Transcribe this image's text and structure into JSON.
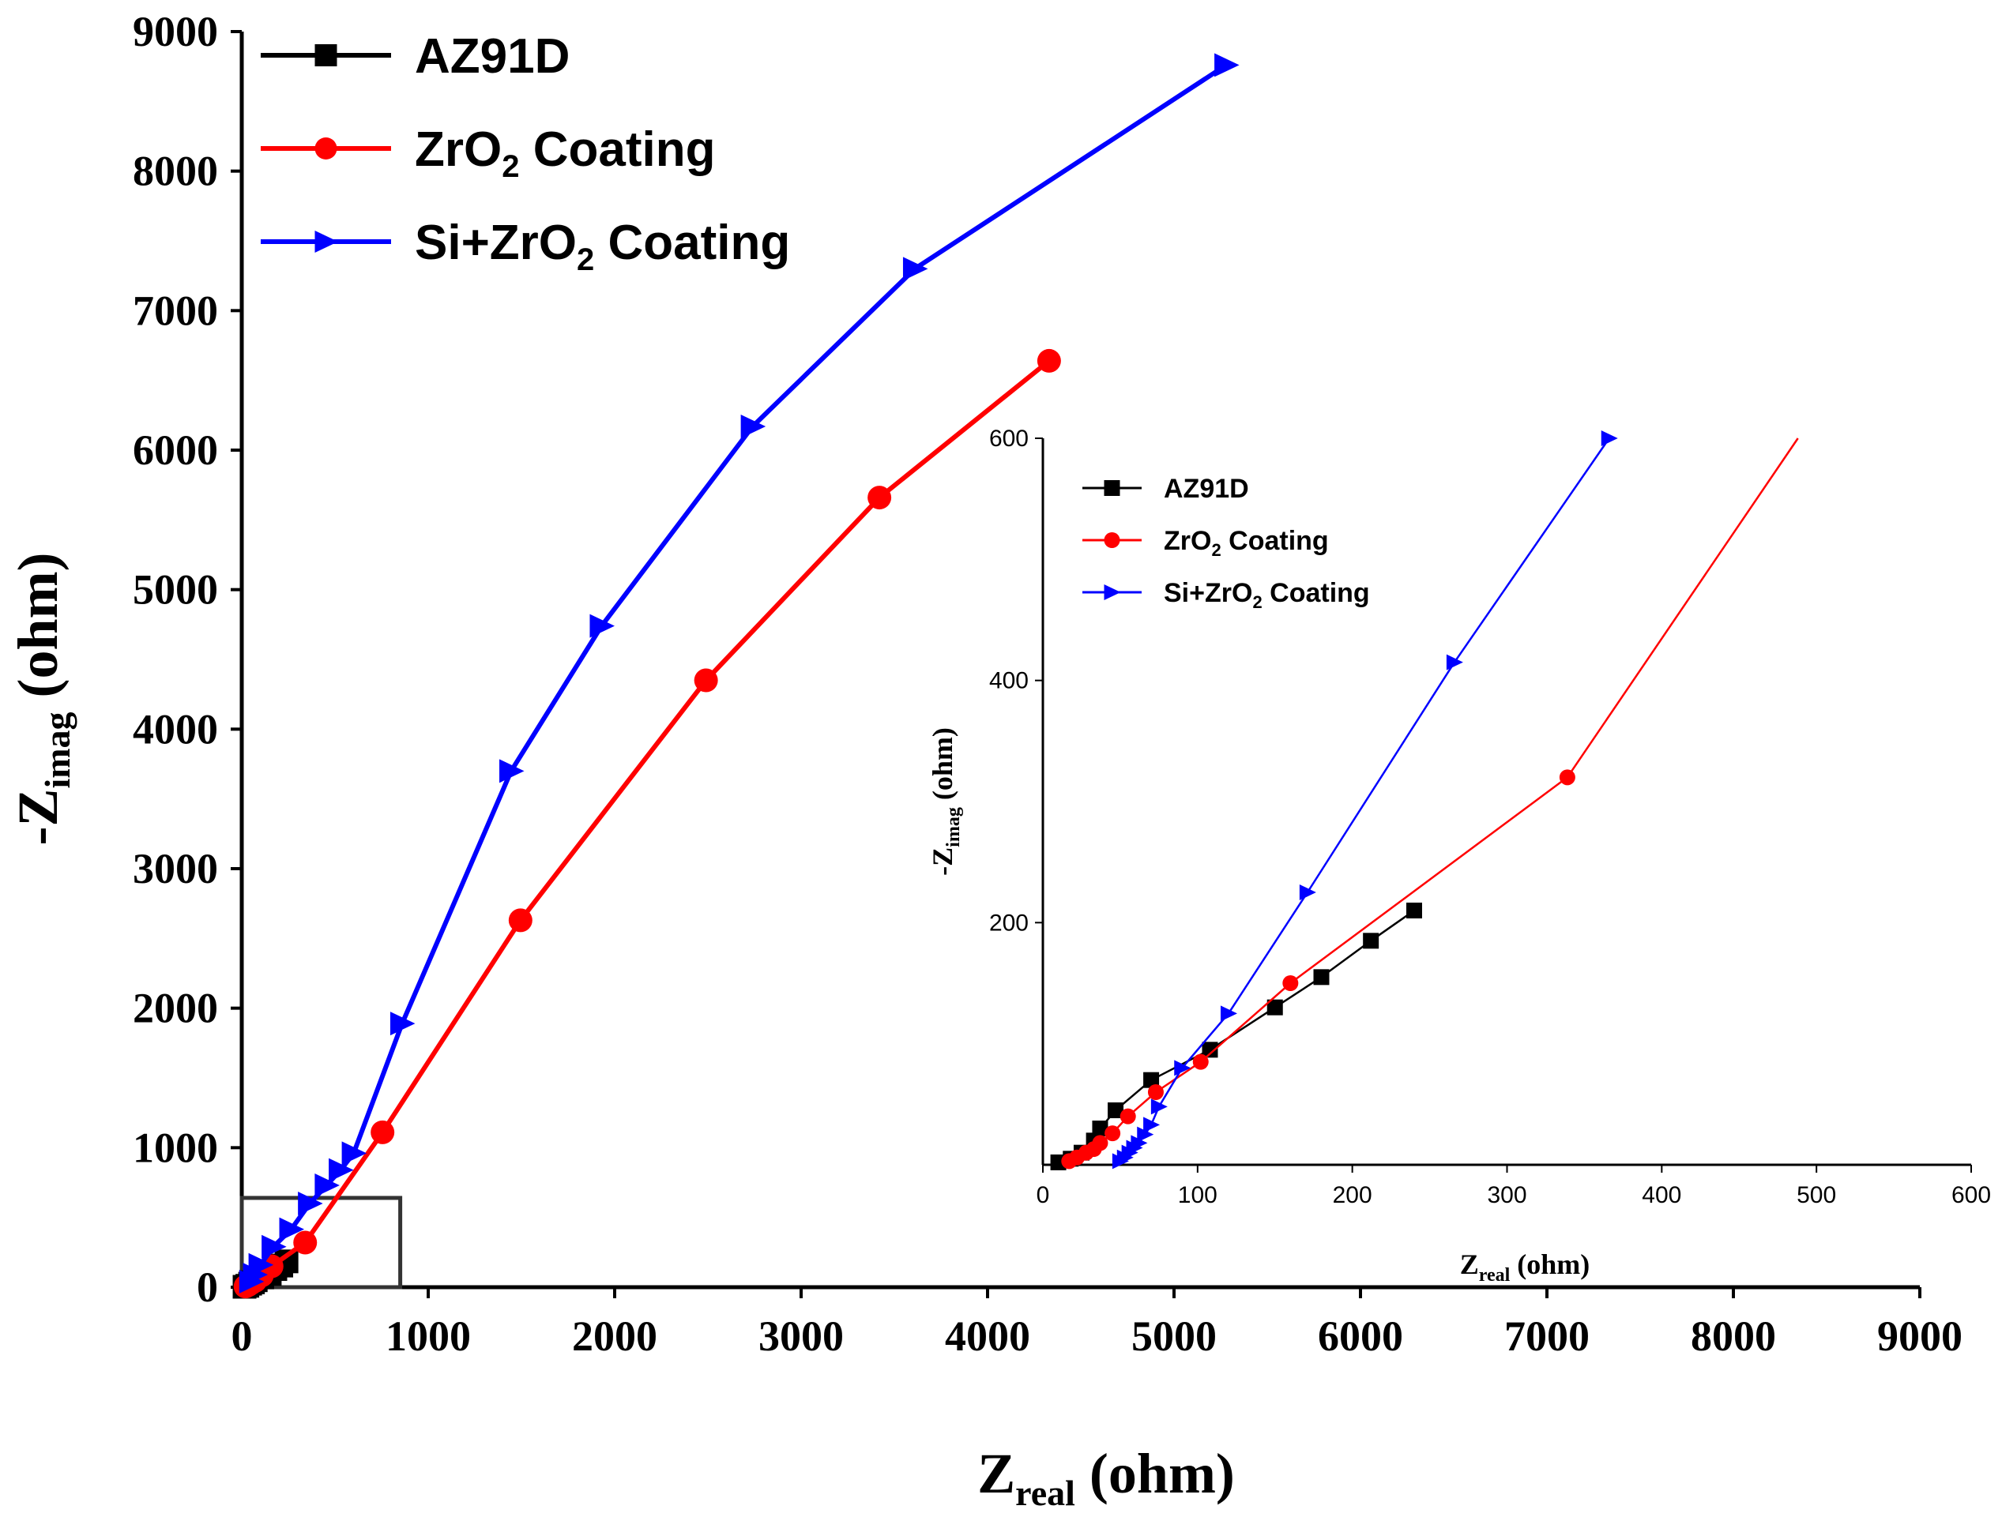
{
  "chart_data": [
    {
      "type": "line",
      "role": "main",
      "xlabel_main": "Z",
      "xlabel_sub": "real",
      "xlabel_unit": " (ohm)",
      "ylabel_main": "-Z",
      "ylabel_sub": "imag",
      "ylabel_unit": " (ohm)",
      "xlim": [
        0,
        9000
      ],
      "ylim": [
        0,
        9000
      ],
      "xticks": [
        0,
        1000,
        2000,
        3000,
        4000,
        5000,
        6000,
        7000,
        8000,
        9000
      ],
      "yticks": [
        0,
        1000,
        2000,
        3000,
        4000,
        5000,
        6000,
        7000,
        8000,
        9000
      ],
      "zoom_box": {
        "x": [
          0,
          850
        ],
        "y": [
          0,
          640
        ]
      },
      "series": [
        {
          "name": "AZ91D",
          "color": "#000000",
          "marker": "square",
          "x": [
            15,
            30,
            45,
            60,
            75,
            110,
            150,
            180,
            212,
            240
          ],
          "y": [
            3,
            10,
            25,
            35,
            50,
            70,
            95,
            130,
            155,
            185
          ]
        },
        {
          "name": "ZrO2 Coating",
          "color": "#ff0000",
          "marker": "circle",
          "x": [
            20,
            35,
            50,
            72,
            108,
            160,
            340,
            755,
            1495,
            2490,
            3420,
            4330
          ],
          "y": [
            5,
            15,
            28,
            45,
            85,
            150,
            320,
            1110,
            2630,
            4350,
            5660,
            6640
          ]
        },
        {
          "name": "Si+ZrO2 Coating",
          "color": "#0000ff",
          "marker": "triangle-right",
          "x": [
            50,
            70,
            100,
            170,
            265,
            365,
            455,
            530,
            600,
            860,
            1445,
            1930,
            2740,
            3610,
            5280
          ],
          "y": [
            40,
            90,
            160,
            290,
            415,
            600,
            730,
            840,
            960,
            1890,
            3700,
            4740,
            6170,
            7300,
            8760
          ]
        }
      ],
      "legend": [
        {
          "label": "AZ91D",
          "sub": "",
          "label_after": ""
        },
        {
          "label": "ZrO",
          "sub": "2",
          "label_after": " Coating"
        },
        {
          "label": "Si+ZrO",
          "sub": "2",
          "label_after": " Coating"
        }
      ]
    },
    {
      "type": "line",
      "role": "inset",
      "xlabel_main": "Z",
      "xlabel_sub": "real",
      "xlabel_unit": " (ohm)",
      "ylabel_main": "-Z",
      "ylabel_sub": "imag",
      "ylabel_unit": " (ohm)",
      "xlim": [
        0,
        600
      ],
      "ylim": [
        0,
        600
      ],
      "xticks": [
        0,
        100,
        200,
        300,
        400,
        500,
        600
      ],
      "yticks": [
        200,
        400,
        600
      ],
      "series": [
        {
          "name": "AZ91D",
          "color": "#000000",
          "marker": "square",
          "x": [
            10,
            18,
            25,
            33,
            37,
            47,
            70,
            108,
            150,
            180,
            212,
            240
          ],
          "y": [
            2,
            5,
            10,
            20,
            30,
            45,
            70,
            95,
            130,
            155,
            185,
            210
          ]
        },
        {
          "name": "ZrO2 Coating",
          "color": "#ff0000",
          "marker": "circle",
          "x": [
            17,
            22,
            28,
            33,
            37,
            45,
            55,
            73,
            102,
            160,
            339,
            488
          ],
          "y": [
            3,
            6,
            10,
            13,
            18,
            26,
            40,
            60,
            85,
            150,
            320,
            600
          ]
        },
        {
          "name": "Si+ZrO2 Coating",
          "color": "#0000ff",
          "marker": "triangle-right",
          "x": [
            50,
            53,
            56,
            59,
            62,
            66,
            70,
            75,
            90,
            120,
            171,
            266,
            366
          ],
          "y": [
            3,
            6,
            10,
            14,
            18,
            25,
            33,
            48,
            80,
            125,
            225,
            415,
            600
          ]
        }
      ],
      "legend": [
        {
          "label": "AZ91D",
          "sub": "",
          "label_after": ""
        },
        {
          "label": "ZrO",
          "sub": "2",
          "label_after": " Coating"
        },
        {
          "label": "Si+ZrO",
          "sub": "2",
          "label_after": " Coating"
        }
      ]
    }
  ]
}
